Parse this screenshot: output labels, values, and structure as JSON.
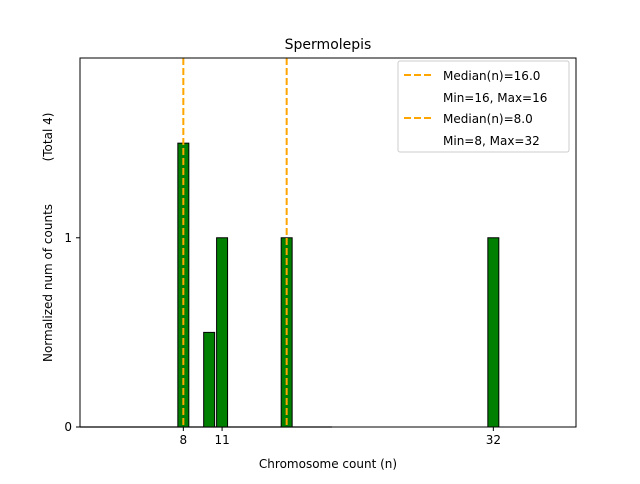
{
  "chart_data": {
    "type": "bar",
    "title": "Spermolepis",
    "xlabel": "Chromosome count (n)",
    "ylabel": "Normalized num of counts",
    "ylabel_note": "(Total 4)",
    "xlim": [
      0,
      38.4
    ],
    "ylim": [
      0,
      1.95
    ],
    "xticks": [
      8,
      11,
      32
    ],
    "yticks": [
      0,
      1
    ],
    "bars": [
      {
        "x": 8,
        "value": 1.5
      },
      {
        "x": 10,
        "value": 0.5
      },
      {
        "x": 11,
        "value": 1
      },
      {
        "x": 16,
        "value": 1
      },
      {
        "x": 32,
        "value": 1
      }
    ],
    "zero_baseline_range": [
      0,
      19.5
    ],
    "bar_color": "#008000",
    "median_color": "#FFA500",
    "median_lines": [
      16,
      8
    ],
    "legend": {
      "placement": "top-right",
      "entries": [
        {
          "label": "Median(n)=16.0",
          "sub": "Min=16, Max=16"
        },
        {
          "label": "Median(n)=8.0",
          "sub": "Min=8, Max=32"
        }
      ]
    },
    "grid": false
  }
}
